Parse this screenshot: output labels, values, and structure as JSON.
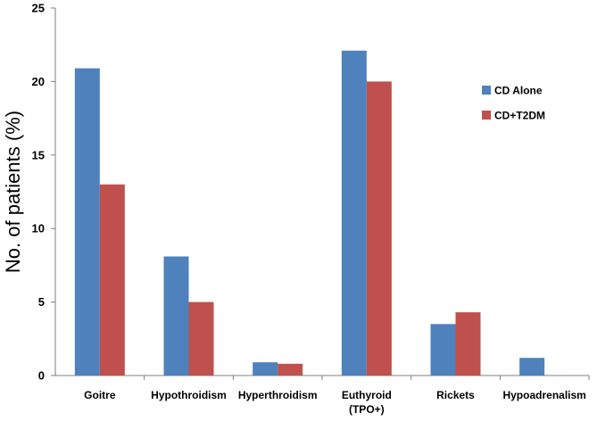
{
  "chart_data": {
    "type": "bar",
    "title": "",
    "xlabel": "",
    "ylabel": "No. of patients (%)",
    "ylim": [
      0,
      25
    ],
    "yticks": [
      "0",
      "5",
      "10",
      "15",
      "20",
      "25"
    ],
    "categories": [
      [
        "Goitre"
      ],
      [
        "Hypothroidism"
      ],
      [
        "Hyperthroidism"
      ],
      [
        "Euthyroid",
        "(TPO+)"
      ],
      [
        "Rickets"
      ],
      [
        "Hypoadrenalism"
      ]
    ],
    "series": [
      {
        "name": "CD Alone",
        "color": "#4F81BD",
        "values": [
          20.9,
          8.1,
          0.9,
          22.1,
          3.5,
          1.2
        ]
      },
      {
        "name": "CD+T2DM",
        "color": "#C0504D",
        "values": [
          13.0,
          5.0,
          0.8,
          20.0,
          4.3,
          0
        ]
      }
    ],
    "grid": false,
    "legend": "right"
  }
}
